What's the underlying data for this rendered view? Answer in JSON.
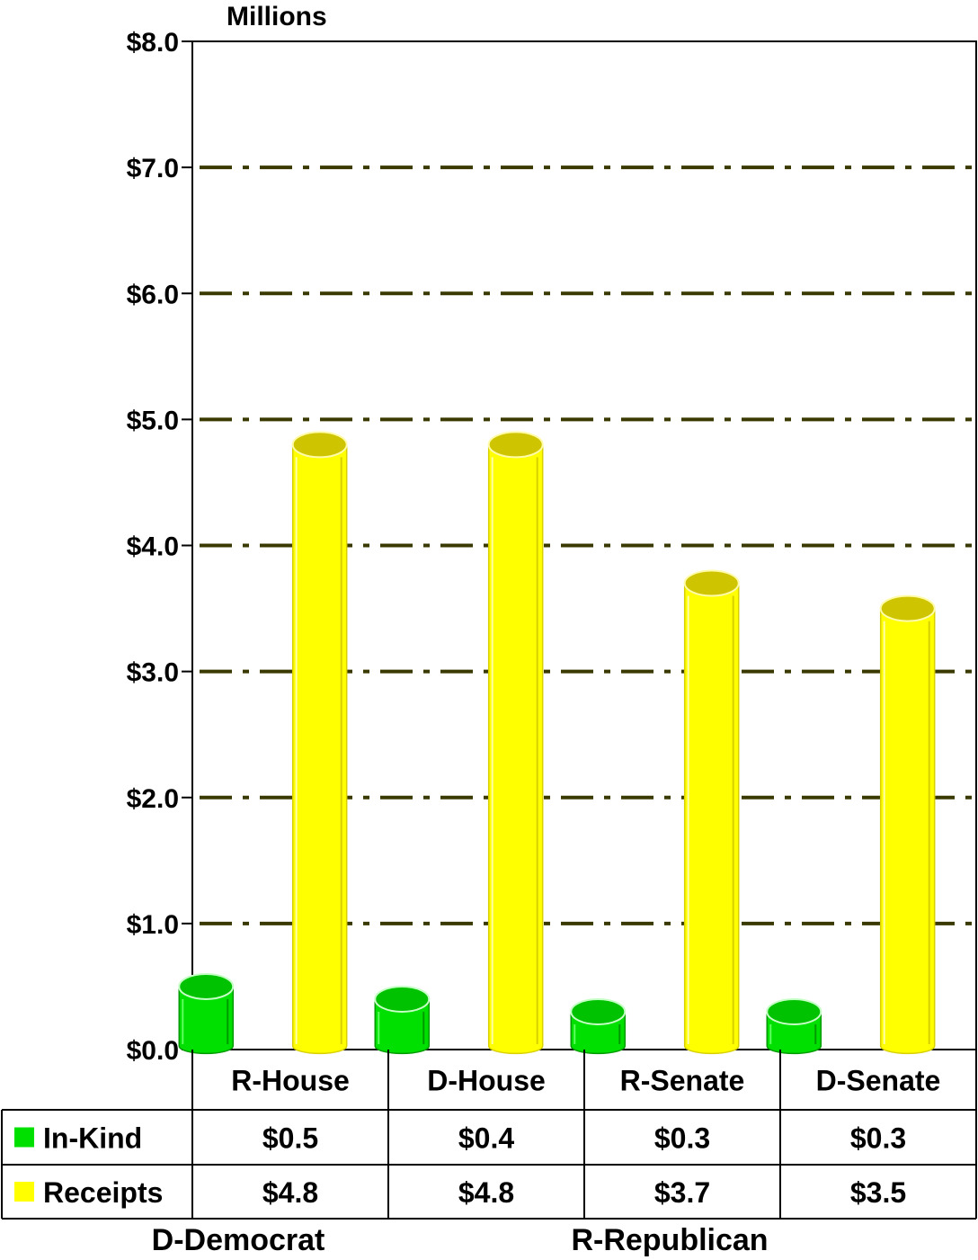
{
  "chart_data": {
    "type": "bar",
    "style": "3d-cylinder",
    "unit_label": "Millions",
    "categories": [
      "R-House",
      "D-House",
      "R-Senate",
      "D-Senate"
    ],
    "series": [
      {
        "name": "In-Kind",
        "color": "#00e000",
        "values": [
          0.5,
          0.4,
          0.3,
          0.3
        ],
        "value_labels": [
          "$0.5",
          "$0.4",
          "$0.3",
          "$0.3"
        ]
      },
      {
        "name": "Receipts",
        "color": "#ffff00",
        "values": [
          4.8,
          4.8,
          3.7,
          3.5
        ],
        "value_labels": [
          "$4.8",
          "$4.8",
          "$3.7",
          "$3.5"
        ]
      }
    ],
    "ylim": [
      0,
      8
    ],
    "y_ticks": [
      0,
      1,
      2,
      3,
      4,
      5,
      6,
      7,
      8
    ],
    "y_tick_labels": [
      "$0.0",
      "$1.0",
      "$2.0",
      "$3.0",
      "$4.0",
      "$5.0",
      "$6.0",
      "$7.0",
      "$8.0"
    ],
    "grid": true,
    "grid_style": "dash-dot",
    "grid_color": "#3a3a00",
    "data_table": true,
    "notes": [
      "D-Democrat",
      "R-Republican"
    ]
  }
}
